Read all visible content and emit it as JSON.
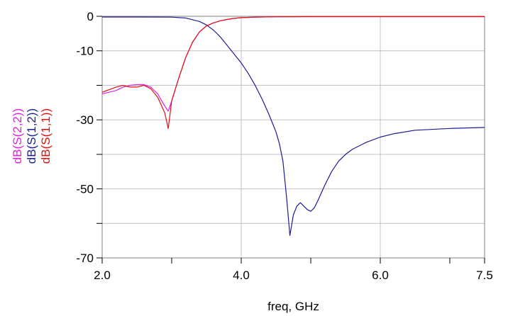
{
  "chart_data": {
    "type": "line",
    "xlabel": "freq, GHz",
    "xlim": [
      2.0,
      7.5
    ],
    "ylim": [
      -70,
      0
    ],
    "grid": true,
    "x_ticks": [
      {
        "value": 2.0,
        "label": "2.0"
      },
      {
        "value": 4.0,
        "label": "4.0"
      },
      {
        "value": 6.0,
        "label": "6.0"
      },
      {
        "value": 7.5,
        "label": "7.5"
      }
    ],
    "x_minor_ticks": [
      3.0,
      5.0,
      7.0
    ],
    "y_ticks": [
      {
        "value": 0,
        "label": "0"
      },
      {
        "value": -10,
        "label": "-10"
      },
      {
        "value": -30,
        "label": "-30"
      },
      {
        "value": -50,
        "label": "-50"
      },
      {
        "value": -70,
        "label": "-70"
      }
    ],
    "y_minor_ticks": [
      -20,
      -40,
      -60
    ],
    "series": [
      {
        "name": "dB(S(2,2))",
        "color": "#e020e0",
        "x": [
          2.0,
          2.2,
          2.3,
          2.4,
          2.5,
          2.6,
          2.7,
          2.8,
          2.9,
          2.95,
          3.0,
          3.1,
          3.2,
          3.3,
          3.4,
          3.5,
          3.6,
          3.7,
          3.8,
          3.9,
          4.0,
          4.2,
          4.5,
          5.0,
          5.5,
          6.0,
          6.5,
          7.0,
          7.5
        ],
        "y": [
          -22.5,
          -21.5,
          -20.5,
          -20.0,
          -19.8,
          -19.8,
          -20.5,
          -22.5,
          -26.0,
          -27.5,
          -24.5,
          -18.0,
          -12.0,
          -7.5,
          -4.5,
          -2.8,
          -1.9,
          -1.3,
          -0.9,
          -0.6,
          -0.4,
          -0.25,
          -0.15,
          -0.1,
          -0.1,
          -0.1,
          -0.1,
          -0.1,
          -0.1
        ]
      },
      {
        "name": "dB(S(1,2))",
        "color": "#1c1c96",
        "x": [
          2.0,
          2.5,
          3.0,
          3.2,
          3.4,
          3.5,
          3.6,
          3.7,
          3.8,
          3.9,
          4.0,
          4.1,
          4.2,
          4.3,
          4.4,
          4.5,
          4.55,
          4.6,
          4.65,
          4.7,
          4.75,
          4.8,
          4.85,
          4.9,
          4.95,
          5.0,
          5.05,
          5.1,
          5.2,
          5.3,
          5.4,
          5.5,
          5.6,
          5.8,
          6.0,
          6.2,
          6.5,
          7.0,
          7.5
        ],
        "y": [
          -0.2,
          -0.2,
          -0.25,
          -0.5,
          -1.5,
          -2.5,
          -4.0,
          -6.0,
          -8.5,
          -11.0,
          -13.5,
          -16.5,
          -20.0,
          -24.0,
          -28.5,
          -33.5,
          -37.0,
          -42.0,
          -52.0,
          -63.5,
          -57.5,
          -55.0,
          -54.0,
          -55.0,
          -56.0,
          -56.5,
          -55.5,
          -53.5,
          -49.0,
          -45.0,
          -42.0,
          -40.0,
          -38.5,
          -36.5,
          -35.0,
          -34.0,
          -33.0,
          -32.5,
          -32.2
        ]
      },
      {
        "name": "dB(S(1,1))",
        "color": "#e01010",
        "x": [
          2.0,
          2.2,
          2.3,
          2.4,
          2.5,
          2.6,
          2.7,
          2.8,
          2.9,
          2.95,
          3.0,
          3.1,
          3.2,
          3.3,
          3.4,
          3.5,
          3.6,
          3.7,
          3.8,
          3.9,
          4.0,
          4.2,
          4.5,
          5.0,
          5.5,
          6.0,
          6.5,
          7.0,
          7.5
        ],
        "y": [
          -22.0,
          -20.5,
          -20.0,
          -20.5,
          -20.5,
          -20.0,
          -21.0,
          -23.5,
          -28.0,
          -32.5,
          -24.5,
          -18.0,
          -12.0,
          -7.5,
          -4.5,
          -2.8,
          -1.9,
          -1.3,
          -0.9,
          -0.6,
          -0.4,
          -0.25,
          -0.15,
          -0.1,
          -0.1,
          -0.1,
          -0.1,
          -0.1,
          -0.1
        ]
      }
    ]
  }
}
